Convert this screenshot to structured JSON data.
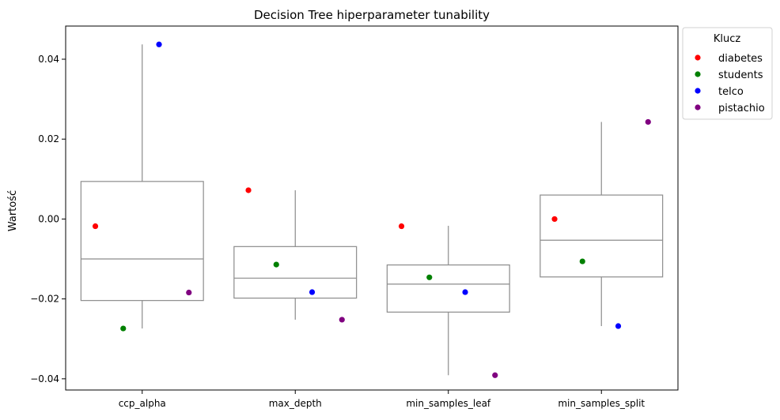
{
  "chart_data": {
    "type": "box+strip",
    "title": "Decision Tree hiperparameter tunability",
    "ylabel": "Wartość",
    "xlabel": "",
    "categories": [
      "ccp_alpha",
      "max_depth",
      "min_samples_leaf",
      "min_samples_split"
    ],
    "ylim": [
      -0.0428,
      0.0483
    ],
    "yticks": [
      -0.04,
      -0.02,
      0.0,
      0.02,
      0.04
    ],
    "ytick_labels": [
      "−0.04",
      "−0.02",
      "0.00",
      "0.02",
      "0.04"
    ],
    "boxes": [
      {
        "q1": -0.0204,
        "median": -0.01,
        "q3": 0.0094,
        "whisker_low": -0.0274,
        "whisker_high": 0.0437
      },
      {
        "q1": -0.0198,
        "median": -0.0148,
        "q3": -0.0069,
        "whisker_low": -0.0252,
        "whisker_high": 0.0072
      },
      {
        "q1": -0.0233,
        "median": -0.0163,
        "q3": -0.0115,
        "whisker_low": -0.0391,
        "whisker_high": -0.0017
      },
      {
        "q1": -0.0145,
        "median": -0.0053,
        "q3": 0.006,
        "whisker_low": -0.0268,
        "whisker_high": 0.0243
      }
    ],
    "series": [
      {
        "name": "diabetes",
        "color": "#ff0000",
        "values": [
          -0.0018,
          0.0072,
          -0.0018,
          0.0
        ]
      },
      {
        "name": "students",
        "color": "#008000",
        "values": [
          -0.0274,
          -0.0114,
          -0.0146,
          -0.0106
        ]
      },
      {
        "name": "telco",
        "color": "#0000ff",
        "values": [
          0.0437,
          -0.0183,
          -0.0183,
          -0.0268
        ]
      },
      {
        "name": "pistachio",
        "color": "#800080",
        "values": [
          -0.0184,
          -0.0252,
          -0.0391,
          0.0243
        ]
      }
    ],
    "legend": {
      "title": "Klucz",
      "placement": "outside-top-right"
    },
    "box_color": "#8c8c8c",
    "grid": false
  }
}
